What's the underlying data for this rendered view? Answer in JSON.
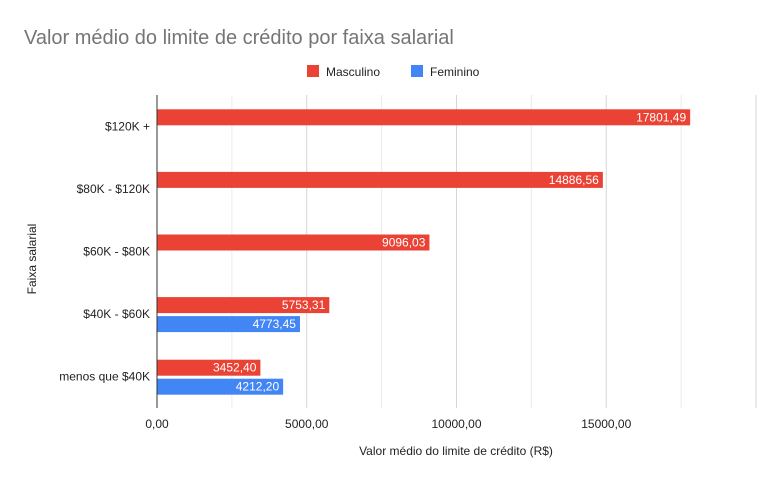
{
  "chart_data": {
    "type": "bar",
    "orientation": "horizontal",
    "title": "Valor médio do limite de crédito por faixa salarial",
    "xlabel": "Valor médio do limite de crédito (R$)",
    "ylabel": "Faixa salarial",
    "categories": [
      "$120K +",
      "$80K - $120K",
      "$60K - $80K",
      "$40K - $60K",
      "menos que $40K"
    ],
    "series": [
      {
        "name": "Masculino",
        "color": "#ea4335",
        "values": [
          17801.49,
          14886.56,
          9096.03,
          5753.31,
          3452.4
        ],
        "value_labels": [
          "17801,49",
          "14886,56",
          "9096,03",
          "5753,31",
          "3452,40"
        ]
      },
      {
        "name": "Feminino",
        "color": "#4285f4",
        "values": [
          null,
          null,
          null,
          4773.45,
          4212.2
        ],
        "value_labels": [
          "",
          "",
          "",
          "4773,45",
          "4212,20"
        ]
      }
    ],
    "xlim": [
      0,
      20000
    ],
    "xticks": [
      0,
      5000,
      10000,
      15000
    ],
    "xtick_labels": [
      "0,00",
      "5000,00",
      "10000,00",
      "15000,00"
    ],
    "grid": true,
    "legend_position": "top"
  }
}
